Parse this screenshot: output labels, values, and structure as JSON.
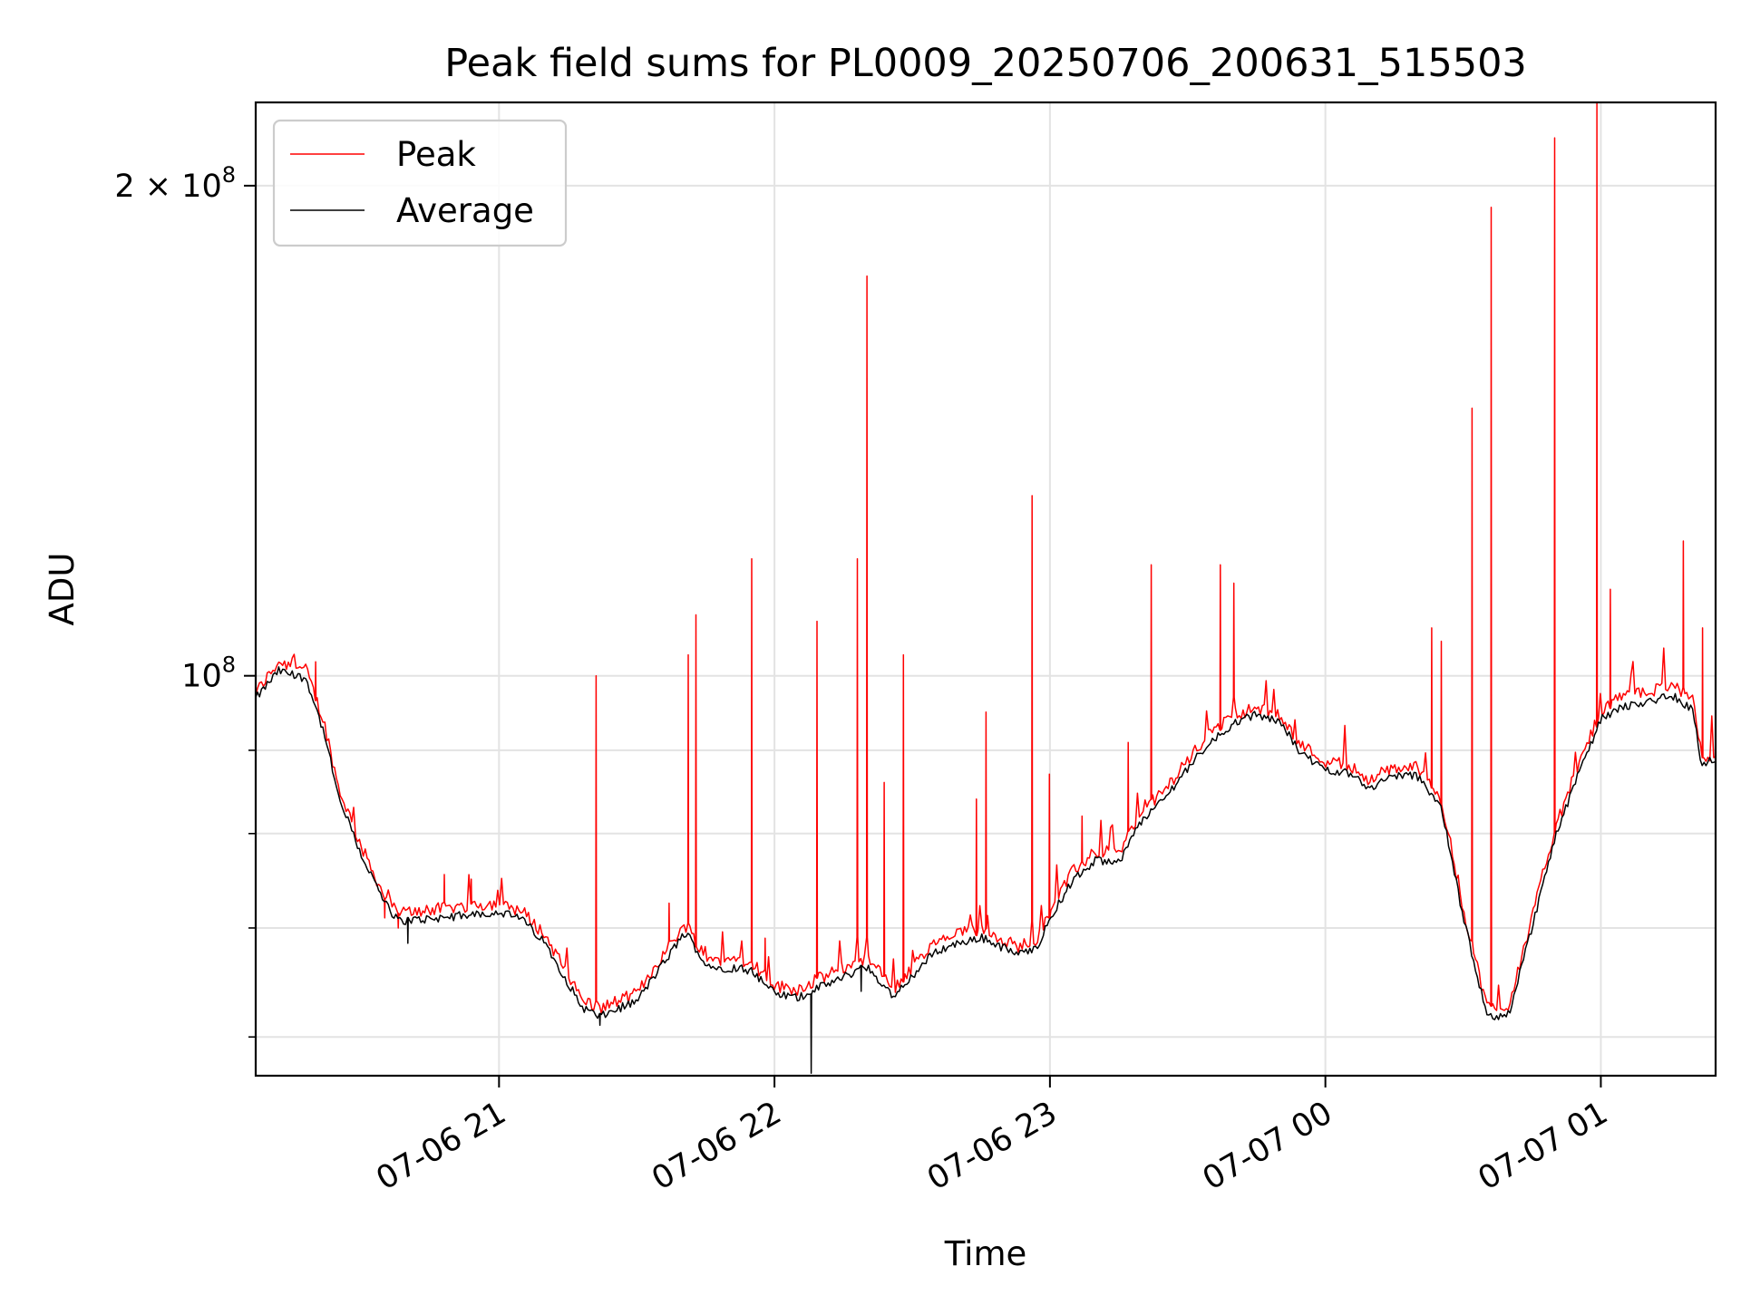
{
  "chart_data": {
    "type": "line",
    "title": "Peak field sums for PL0009_20250706_200631_515503",
    "xlabel": "Time",
    "ylabel": "ADU",
    "y_scale": "log",
    "grid": true,
    "legend_position": "top-left",
    "x_range": [
      "2025-07-06 20:07",
      "2025-07-07 01:25"
    ],
    "y_range": [
      56800000,
      225000000
    ],
    "x_ticks": [
      "07-06 21",
      "07-06 22",
      "07-06 23",
      "07-07 00",
      "07-07 01"
    ],
    "y_ticks": [
      {
        "value": 100000000,
        "label": "10",
        "sup": "8"
      },
      {
        "value": 200000000,
        "label": "2 × 10",
        "sup": "8"
      }
    ],
    "baseline": {
      "x": [
        "2025-07-06 20:07",
        "2025-07-06 20:12",
        "2025-07-06 20:18",
        "2025-07-06 20:22",
        "2025-07-06 20:25",
        "2025-07-06 20:30",
        "2025-07-06 20:35",
        "2025-07-06 20:38",
        "2025-07-06 20:45",
        "2025-07-06 20:55",
        "2025-07-06 21:00",
        "2025-07-06 21:05",
        "2025-07-06 21:10",
        "2025-07-06 21:15",
        "2025-07-06 21:18",
        "2025-07-06 21:22",
        "2025-07-06 21:25",
        "2025-07-06 21:30",
        "2025-07-06 21:37",
        "2025-07-06 21:40",
        "2025-07-06 21:41",
        "2025-07-06 21:45",
        "2025-07-06 21:50",
        "2025-07-06 21:52",
        "2025-07-06 21:55",
        "2025-07-06 22:00",
        "2025-07-06 22:05",
        "2025-07-06 22:10",
        "2025-07-06 22:15",
        "2025-07-06 22:20",
        "2025-07-06 22:26",
        "2025-07-06 22:35",
        "2025-07-06 22:40",
        "2025-07-06 22:45",
        "2025-07-06 22:53",
        "2025-07-06 22:57",
        "2025-07-06 23:00",
        "2025-07-06 23:05",
        "2025-07-06 23:10",
        "2025-07-06 23:15",
        "2025-07-06 23:20",
        "2025-07-06 23:25",
        "2025-07-06 23:30",
        "2025-07-06 23:35",
        "2025-07-06 23:40",
        "2025-07-06 23:45",
        "2025-07-06 23:50",
        "2025-07-06 23:55",
        "2025-07-07 00:00",
        "2025-07-07 00:05",
        "2025-07-07 00:10",
        "2025-07-07 00:15",
        "2025-07-07 00:20",
        "2025-07-07 00:25",
        "2025-07-07 00:30",
        "2025-07-07 00:35",
        "2025-07-07 00:37",
        "2025-07-07 00:40",
        "2025-07-07 00:45",
        "2025-07-07 00:50",
        "2025-07-07 00:55",
        "2025-07-07 01:00",
        "2025-07-07 01:05",
        "2025-07-07 01:10",
        "2025-07-07 01:15",
        "2025-07-07 01:20",
        "2025-07-07 01:22",
        "2025-07-07 01:25"
      ],
      "average": [
        96800000,
        100700000,
        99600000,
        92000000,
        84200000,
        77600000,
        72600000,
        70700000,
        70900000,
        71400000,
        71600000,
        70900000,
        68500000,
        64800000,
        62600000,
        61700000,
        62300000,
        63100000,
        67300000,
        69300000,
        69400000,
        66400000,
        66100000,
        66200000,
        65900000,
        63800000,
        63400000,
        64400000,
        65300000,
        66300000,
        63500000,
        67700000,
        68500000,
        69100000,
        67400000,
        68000000,
        70900000,
        74900000,
        77000000,
        76800000,
        81500000,
        84100000,
        87800000,
        91100000,
        93500000,
        94600000,
        93700000,
        89400000,
        87600000,
        87200000,
        85300000,
        86900000,
        86800000,
        83400000,
        71000000,
        62000000,
        61700000,
        62000000,
        70000000,
        79400000,
        86800000,
        94000000,
        95800000,
        96200000,
        97500000,
        95300000,
        88000000,
        89000000
      ],
      "peak": [
        97600000,
        102000000,
        100800000,
        93300000,
        85400000,
        78500000,
        73200000,
        71500000,
        71800000,
        72300000,
        72500000,
        71700000,
        69300000,
        65500000,
        63300000,
        62500000,
        63000000,
        63800000,
        68200000,
        70100000,
        70200000,
        67100000,
        66900000,
        67000000,
        66700000,
        64500000,
        64200000,
        65200000,
        66200000,
        67100000,
        64300000,
        68500000,
        69400000,
        69900000,
        68200000,
        68900000,
        71800000,
        75800000,
        78000000,
        77800000,
        82600000,
        85000000,
        88800000,
        92200000,
        94700000,
        95500000,
        94700000,
        90600000,
        88600000,
        88200000,
        86200000,
        87800000,
        87900000,
        84400000,
        71900000,
        62800000,
        62400000,
        62800000,
        70900000,
        80500000,
        87900000,
        95100000,
        97200000,
        97600000,
        98900000,
        96500000,
        89000000,
        89800000
      ]
    },
    "peak_spikes": [
      {
        "x": "2025-07-06 20:20",
        "y": 102000000
      },
      {
        "x": "2025-07-06 20:35",
        "y": 71000000
      },
      {
        "x": "2025-07-06 20:38",
        "y": 70000000
      },
      {
        "x": "2025-07-06 20:48",
        "y": 75500000
      },
      {
        "x": "2025-07-06 20:54",
        "y": 75000000
      },
      {
        "x": "2025-07-06 21:21",
        "y": 100000000
      },
      {
        "x": "2025-07-06 21:37",
        "y": 72500000
      },
      {
        "x": "2025-07-06 21:41",
        "y": 103000000
      },
      {
        "x": "2025-07-06 21:43",
        "y": 109000000
      },
      {
        "x": "2025-07-06 21:55",
        "y": 118000000
      },
      {
        "x": "2025-07-06 21:58",
        "y": 69000000
      },
      {
        "x": "2025-07-06 22:09",
        "y": 108000000
      },
      {
        "x": "2025-07-06 22:18",
        "y": 118000000
      },
      {
        "x": "2025-07-06 22:20",
        "y": 176000000
      },
      {
        "x": "2025-07-06 22:24",
        "y": 86000000
      },
      {
        "x": "2025-07-06 22:28",
        "y": 103000000
      },
      {
        "x": "2025-07-06 22:44",
        "y": 84000000
      },
      {
        "x": "2025-07-06 22:46",
        "y": 95000000
      },
      {
        "x": "2025-07-06 22:56",
        "y": 129000000
      },
      {
        "x": "2025-07-06 23:00",
        "y": 87000000
      },
      {
        "x": "2025-07-06 23:07",
        "y": 82000000
      },
      {
        "x": "2025-07-06 23:17",
        "y": 91000000
      },
      {
        "x": "2025-07-06 23:22",
        "y": 117000000
      },
      {
        "x": "2025-07-06 23:37",
        "y": 117000000
      },
      {
        "x": "2025-07-06 23:40",
        "y": 114000000
      },
      {
        "x": "2025-07-07 00:23",
        "y": 107000000
      },
      {
        "x": "2025-07-07 00:25",
        "y": 105000000
      },
      {
        "x": "2025-07-07 00:32",
        "y": 146000000
      },
      {
        "x": "2025-07-07 00:36",
        "y": 194000000
      },
      {
        "x": "2025-07-07 00:50",
        "y": 214000000
      },
      {
        "x": "2025-07-07 00:59",
        "y": 225000000
      },
      {
        "x": "2025-07-07 01:02",
        "y": 113000000
      },
      {
        "x": "2025-07-07 01:18",
        "y": 121000000
      },
      {
        "x": "2025-07-07 01:22",
        "y": 107000000
      }
    ],
    "average_dips": [
      {
        "x": "2025-07-06 21:22",
        "y": 61000000
      },
      {
        "x": "2025-07-06 22:08",
        "y": 57000000
      },
      {
        "x": "2025-07-06 22:19",
        "y": 64000000
      },
      {
        "x": "2025-07-06 20:40",
        "y": 68500000
      }
    ],
    "series": [
      {
        "name": "Peak",
        "color": "#ff0000"
      },
      {
        "name": "Average",
        "color": "#000000"
      }
    ]
  }
}
